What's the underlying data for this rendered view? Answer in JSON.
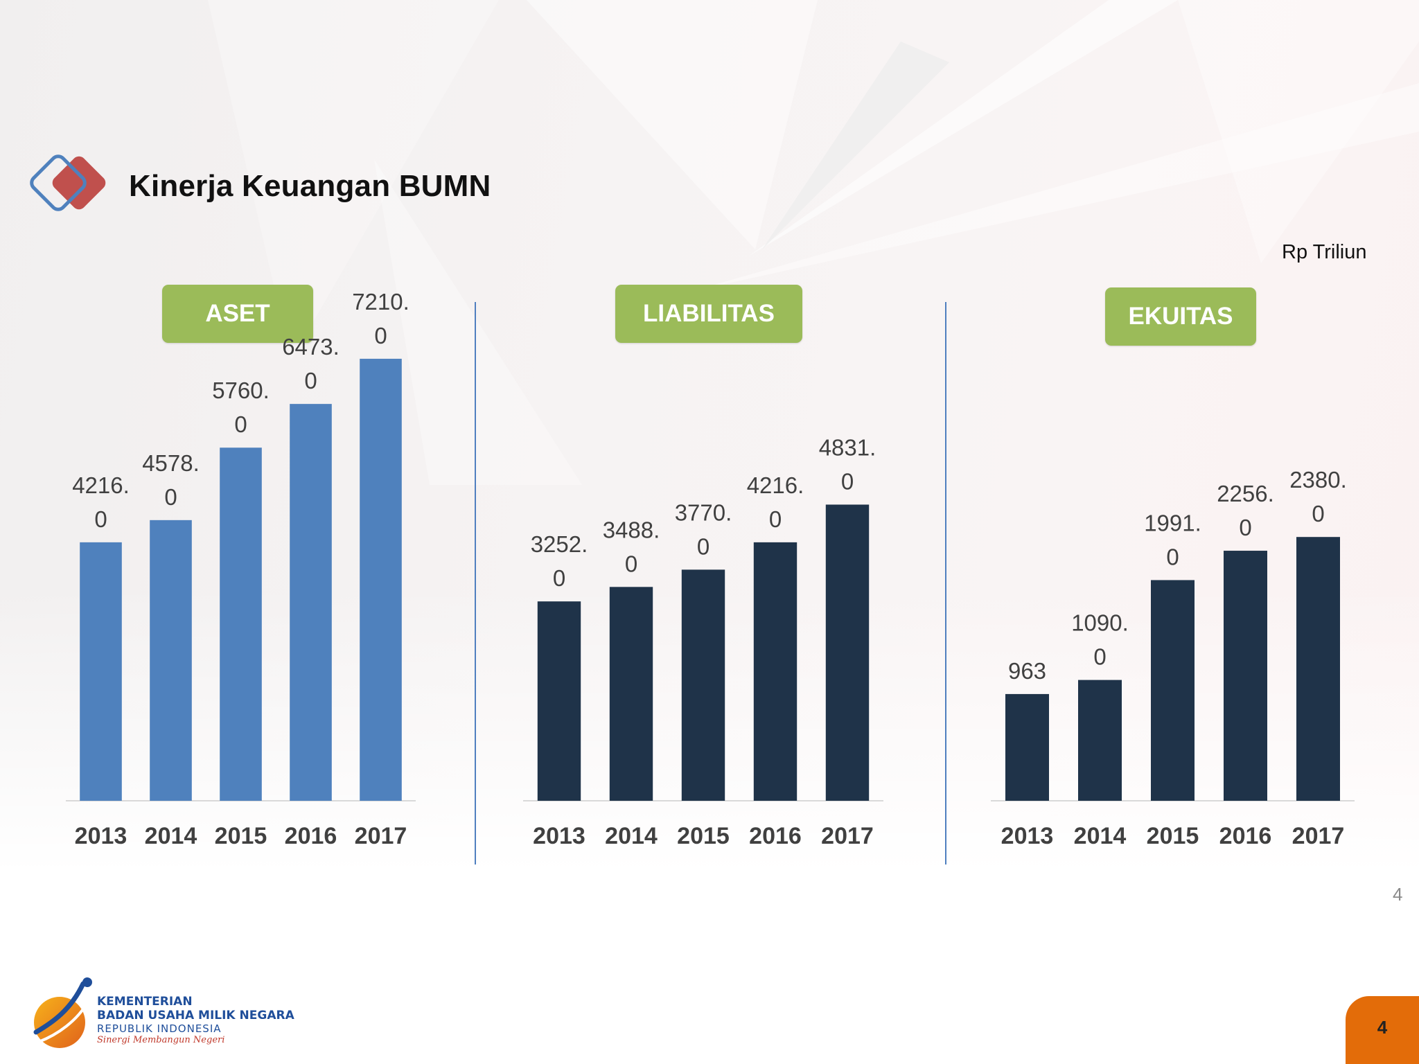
{
  "header": {
    "title": "Kinerja Keuangan BUMN"
  },
  "unit": "Rp Triliun",
  "panels": {
    "aset": {
      "label": "ASET"
    },
    "liabilitas": {
      "label": "LIABILITAS"
    },
    "ekuitas": {
      "label": "EKUITAS"
    }
  },
  "footer": {
    "page_number": "4",
    "corner_number": "4",
    "org_line1": "KEMENTERIAN",
    "org_line2": "BADAN USAHA MILIK NEGARA",
    "org_line3": "REPUBLIK INDONESIA",
    "tagline": "Sinergi Membangun Negeri"
  },
  "colors": {
    "pill_green": "#9bbb59",
    "aset_bar": "#4f81bd",
    "dark_bar": "#1f3349",
    "divider": "#4f7fbf",
    "corner_orange": "#e36c09"
  },
  "chart_data": [
    {
      "type": "bar",
      "title": "ASET",
      "categories": [
        "2013",
        "2014",
        "2015",
        "2016",
        "2017"
      ],
      "values": [
        4216.0,
        4578.0,
        5760.0,
        6473.0,
        7210.0
      ],
      "value_labels": [
        [
          "4216.",
          "0"
        ],
        [
          "4578.",
          "0"
        ],
        [
          "5760.",
          "0"
        ],
        [
          "6473.",
          "0"
        ],
        [
          "7210.",
          "0"
        ]
      ],
      "color": "#4f81bd",
      "ylim": [
        0,
        8000
      ],
      "grid": false
    },
    {
      "type": "bar",
      "title": "LIABILITAS",
      "categories": [
        "2013",
        "2014",
        "2015",
        "2016",
        "2017"
      ],
      "values": [
        3252.0,
        3488.0,
        3770.0,
        4216.0,
        4831.0
      ],
      "value_labels": [
        [
          "3252.",
          "0"
        ],
        [
          "3488.",
          "0"
        ],
        [
          "3770.",
          "0"
        ],
        [
          "4216.",
          "0"
        ],
        [
          "4831.",
          "0"
        ]
      ],
      "color": "#1f3349",
      "ylim": [
        0,
        8000
      ],
      "grid": false
    },
    {
      "type": "bar",
      "title": "EKUITAS",
      "categories": [
        "2013",
        "2014",
        "2015",
        "2016",
        "2017"
      ],
      "values": [
        963,
        1090.0,
        1991.0,
        2256.0,
        2380.0
      ],
      "value_labels": [
        [
          "963"
        ],
        [
          "1090.",
          "0"
        ],
        [
          "1991.",
          "0"
        ],
        [
          "2256.",
          "0"
        ],
        [
          "2380.",
          "0"
        ]
      ],
      "color": "#1f3349",
      "ylim": [
        0,
        4000
      ],
      "grid": false
    }
  ]
}
